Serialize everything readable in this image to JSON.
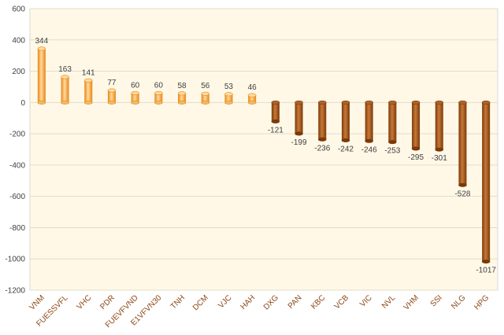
{
  "chart_data": {
    "type": "bar",
    "title": "",
    "xlabel": "",
    "ylabel": "",
    "ylim": [
      -1200,
      600
    ],
    "yticks": [
      600,
      400,
      200,
      0,
      -200,
      -400,
      -600,
      -800,
      -1000,
      -1200
    ],
    "grid": true,
    "categories": [
      "VNM",
      "FUESSVFL",
      "VHC",
      "PDR",
      "FUEVFVND",
      "E1VFVN30",
      "TNH",
      "DCM",
      "VJC",
      "HAH",
      "DXG",
      "PAN",
      "KBC",
      "VCB",
      "VIC",
      "NVL",
      "VHM",
      "SSI",
      "NLG",
      "HPG"
    ],
    "values": [
      344,
      163,
      141,
      77,
      60,
      60,
      58,
      56,
      53,
      46,
      -121,
      -199,
      -236,
      -242,
      -246,
      -253,
      -295,
      -301,
      -528,
      -1017
    ],
    "data_labels": [
      "344",
      "163",
      "141",
      "77",
      "60",
      "60",
      "58",
      "56",
      "53",
      "46",
      "-121",
      "-199",
      "-236",
      "-242",
      "-246",
      "-253",
      "-295",
      "-301",
      "-528",
      "-1017"
    ],
    "colors": {
      "plot_background": "#FFF8E7",
      "grid": "#E3DCCB",
      "positive_light": "#FFD9A0",
      "positive_dark": "#E8850F",
      "negative_light": "#C87838",
      "negative_dark": "#7A3A08",
      "category_label": "#8B4513"
    }
  }
}
